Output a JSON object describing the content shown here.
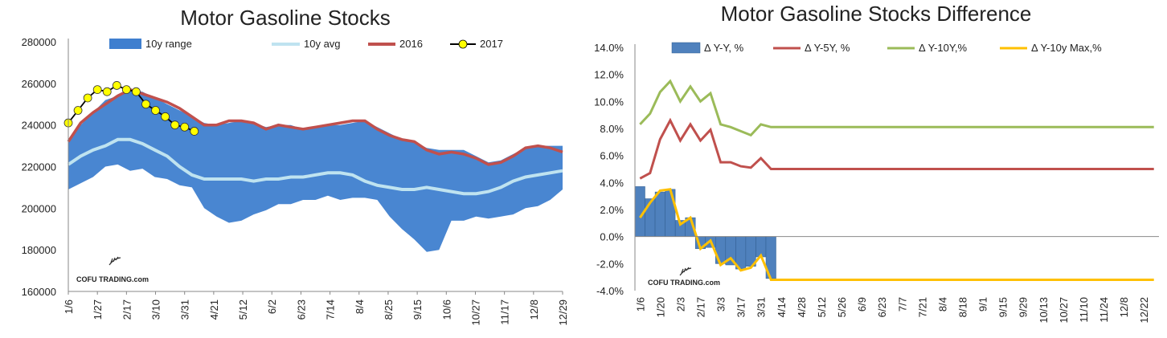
{
  "chart_data": [
    {
      "type": "area",
      "title": "Motor Gasoline Stocks",
      "xlabel": "",
      "ylabel": "",
      "ylim": [
        160000,
        280000
      ],
      "y_ticks": [
        160000,
        180000,
        200000,
        220000,
        240000,
        260000,
        280000
      ],
      "y_tick_labels": [
        "160000",
        "180000",
        "200000",
        "220000",
        "240000",
        "260000",
        "280000"
      ],
      "x_tick_labels": [
        "1/6",
        "1/27",
        "2/17",
        "3/10",
        "3/31",
        "4/21",
        "5/12",
        "6/2",
        "6/23",
        "7/14",
        "8/4",
        "8/25",
        "9/15",
        "10/6",
        "10/27",
        "11/17",
        "12/8",
        "12/29"
      ],
      "legend_position": "top",
      "grid": false,
      "colors": {
        "range": "#3f7fcf",
        "avg": "#bfe3f0",
        "y2016": "#c0504d",
        "y2017": "#ffff00"
      },
      "series": [
        {
          "name": "10y range",
          "lower": [
            209000,
            212000,
            215000,
            220000,
            221000,
            218000,
            219000,
            215000,
            214000,
            211000,
            210000,
            200000,
            196000,
            193000,
            194000,
            197000,
            199000,
            202000,
            202000,
            204000,
            204000,
            206000,
            204000,
            205000,
            205000,
            204000,
            196000,
            190000,
            185000,
            179000,
            180000,
            194000,
            194000,
            196000,
            195000,
            196000,
            197000,
            200000,
            201000,
            204000,
            209000
          ],
          "upper": [
            232000,
            240000,
            246000,
            252000,
            254000,
            257000,
            256000,
            253000,
            250000,
            247000,
            244000,
            241000,
            240000,
            241000,
            242000,
            241000,
            239000,
            240000,
            240000,
            238000,
            239000,
            240000,
            240000,
            241000,
            242000,
            239000,
            236000,
            233000,
            232000,
            229000,
            228000,
            228000,
            228000,
            225000,
            222000,
            223000,
            226000,
            229000,
            230000,
            230000,
            230000
          ]
        },
        {
          "name": "10y avg",
          "values": [
            221000,
            225000,
            228000,
            230000,
            233000,
            233000,
            231000,
            228000,
            225000,
            220000,
            216000,
            214000,
            214000,
            214000,
            214000,
            213000,
            214000,
            214000,
            215000,
            215000,
            216000,
            217000,
            217000,
            216000,
            213000,
            211000,
            210000,
            209000,
            209000,
            210000,
            209000,
            208000,
            207000,
            207000,
            208000,
            210000,
            213000,
            215000,
            216000,
            217000,
            218000
          ]
        },
        {
          "name": "2016",
          "values": [
            232000,
            241000,
            246000,
            250000,
            254000,
            257000,
            255000,
            253000,
            251000,
            248000,
            244000,
            240000,
            240000,
            242000,
            242000,
            241000,
            238000,
            240000,
            239000,
            238000,
            239000,
            240000,
            241000,
            242000,
            242000,
            238000,
            235000,
            233000,
            232000,
            228000,
            226000,
            227000,
            226000,
            224000,
            221000,
            222000,
            225000,
            229000,
            230000,
            229000,
            227000
          ]
        },
        {
          "name": "2017",
          "values": [
            241000,
            247000,
            253000,
            257000,
            256000,
            259000,
            257000,
            256000,
            250000,
            247000,
            244000,
            240000,
            239000,
            237000
          ]
        }
      ],
      "annotations": [
        "COFU TRADING.com"
      ]
    },
    {
      "type": "bar",
      "title": "Motor Gasoline Stocks Difference",
      "xlabel": "",
      "ylabel": "",
      "ylim": [
        -4.0,
        14.0
      ],
      "y_ticks": [
        -4,
        -2,
        0,
        2,
        4,
        6,
        8,
        10,
        12,
        14
      ],
      "y_tick_labels": [
        "-4.0%",
        "-2.0%",
        "0.0%",
        "2.0%",
        "4.0%",
        "6.0%",
        "8.0%",
        "10.0%",
        "12.0%",
        "14.0%"
      ],
      "x_tick_labels": [
        "1/6",
        "1/20",
        "2/3",
        "2/17",
        "3/3",
        "3/17",
        "3/31",
        "4/14",
        "4/28",
        "5/12",
        "5/26",
        "6/9",
        "6/23",
        "7/7",
        "7/21",
        "8/4",
        "8/18",
        "9/1",
        "9/15",
        "9/29",
        "10/13",
        "10/27",
        "11/10",
        "11/24",
        "12/8",
        "12/22"
      ],
      "legend_position": "top",
      "grid": false,
      "colors": {
        "yy": "#4f81bd",
        "y5": "#c0504d",
        "y10": "#9bbb59",
        "ymax": "#ffc000"
      },
      "series": [
        {
          "name": "Δ Y-Y, %",
          "kind": "bar",
          "values": [
            3.7,
            2.8,
            3.3,
            3.5,
            1.2,
            1.4,
            -0.9,
            -0.8,
            -2.0,
            -2.1,
            -2.4,
            -2.2,
            -1.5,
            -3.1
          ]
        },
        {
          "name": "Δ Y-5Y, %",
          "kind": "line",
          "values": [
            4.3,
            4.7,
            7.2,
            8.6,
            7.1,
            8.3,
            7.1,
            7.9,
            5.5,
            5.5,
            5.2,
            5.1,
            5.8,
            5.0,
            5.0,
            5.0,
            5.0,
            5.0,
            5.0,
            5.0,
            5.0,
            5.0,
            5.0,
            5.0,
            5.0,
            5.0,
            5.0,
            5.0,
            5.0,
            5.0,
            5.0,
            5.0,
            5.0,
            5.0,
            5.0,
            5.0,
            5.0,
            5.0,
            5.0,
            5.0,
            5.0,
            5.0,
            5.0,
            5.0,
            5.0,
            5.0,
            5.0,
            5.0,
            5.0,
            5.0,
            5.0,
            5.0
          ]
        },
        {
          "name": "Δ Y-10Y,%",
          "kind": "line",
          "values": [
            8.3,
            9.1,
            10.7,
            11.5,
            10.0,
            11.1,
            10.0,
            10.6,
            8.3,
            8.1,
            7.8,
            7.5,
            8.3,
            8.1,
            8.1,
            8.1,
            8.1,
            8.1,
            8.1,
            8.1,
            8.1,
            8.1,
            8.1,
            8.1,
            8.1,
            8.1,
            8.1,
            8.1,
            8.1,
            8.1,
            8.1,
            8.1,
            8.1,
            8.1,
            8.1,
            8.1,
            8.1,
            8.1,
            8.1,
            8.1,
            8.1,
            8.1,
            8.1,
            8.1,
            8.1,
            8.1,
            8.1,
            8.1,
            8.1,
            8.1,
            8.1,
            8.1
          ]
        },
        {
          "name": "Δ Y-10y Max,%",
          "kind": "line",
          "values": [
            1.4,
            2.5,
            3.4,
            3.5,
            0.9,
            1.4,
            -0.9,
            -0.3,
            -2.1,
            -1.6,
            -2.5,
            -2.3,
            -1.4,
            -3.2,
            -3.2,
            -3.2,
            -3.2,
            -3.2,
            -3.2,
            -3.2,
            -3.2,
            -3.2,
            -3.2,
            -3.2,
            -3.2,
            -3.2,
            -3.2,
            -3.2,
            -3.2,
            -3.2,
            -3.2,
            -3.2,
            -3.2,
            -3.2,
            -3.2,
            -3.2,
            -3.2,
            -3.2,
            -3.2,
            -3.2,
            -3.2,
            -3.2,
            -3.2,
            -3.2,
            -3.2,
            -3.2,
            -3.2,
            -3.2,
            -3.2,
            -3.2,
            -3.2,
            -3.2
          ]
        }
      ],
      "annotations": [
        "COFU TRADING.com"
      ]
    }
  ]
}
